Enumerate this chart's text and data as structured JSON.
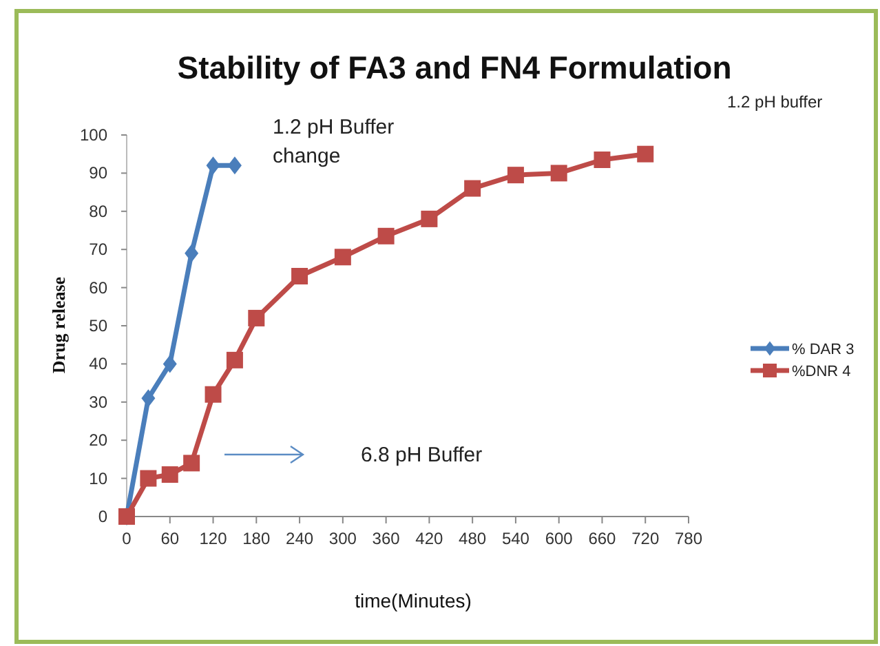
{
  "chart_data": {
    "type": "line",
    "title": "Stability of FA3 and FN4 Formulation",
    "xlabel": "time(Minutes)",
    "ylabel": "Drug release",
    "annotations": [
      "1.2 pH Buffer\nchange",
      "6.8 pH Buffer",
      "1.2 pH buffer"
    ],
    "series": [
      {
        "name": "% DAR 3",
        "color": "#4a7ebb",
        "marker": "diamond",
        "x": [
          0,
          30,
          60,
          90,
          120,
          150
        ],
        "values": [
          0,
          31,
          40,
          69,
          92,
          92
        ]
      },
      {
        "name": "%DNR 4",
        "color": "#be4b48",
        "marker": "square",
        "x": [
          0,
          30,
          60,
          90,
          120,
          150,
          180,
          240,
          300,
          360,
          420,
          480,
          540,
          600,
          660,
          720
        ],
        "values": [
          0,
          10,
          11,
          14,
          32,
          41,
          52,
          63,
          68,
          73.5,
          78,
          86,
          89.5,
          90,
          93.5,
          95
        ]
      }
    ],
    "xlim": [
      0,
      780
    ],
    "xticks": [
      0,
      60,
      120,
      180,
      240,
      300,
      360,
      420,
      480,
      540,
      600,
      660,
      720,
      780
    ],
    "ylim": [
      0,
      100
    ],
    "yticks": [
      0,
      10,
      20,
      30,
      40,
      50,
      60,
      70,
      80,
      90,
      100
    ],
    "grid": false,
    "legend": "right",
    "line_style": "solid"
  }
}
